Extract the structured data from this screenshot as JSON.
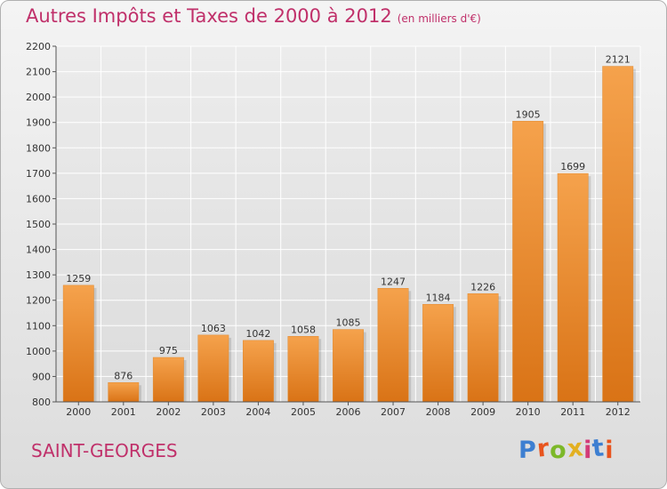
{
  "title": "Autres Impôts et Taxes de 2000 à 2012",
  "subtitle": "(en milliers d'€)",
  "commune": "SAINT-GEORGES",
  "logo": {
    "letters": [
      "P",
      "r",
      "o",
      "x",
      "i",
      "t",
      "i"
    ],
    "colors": [
      "#3d7fd1",
      "#e8541e",
      "#7cb829",
      "#e3b021",
      "#d33a78",
      "#3d7fd1",
      "#e8541e"
    ]
  },
  "colors": {
    "title": "#c0306a",
    "bar_light": "#f5a24c",
    "bar_dark": "#d97316"
  },
  "chart_data": {
    "type": "bar",
    "title": "Autres Impôts et Taxes de 2000 à 2012",
    "subtitle": "(en milliers d'€)",
    "categories": [
      "2000",
      "2001",
      "2002",
      "2003",
      "2004",
      "2005",
      "2006",
      "2007",
      "2008",
      "2009",
      "2010",
      "2011",
      "2012"
    ],
    "values": [
      1259,
      876,
      975,
      1063,
      1042,
      1058,
      1085,
      1247,
      1184,
      1226,
      1905,
      1699,
      2121
    ],
    "ylim": [
      800,
      2200
    ],
    "yticks": [
      800,
      900,
      1000,
      1100,
      1200,
      1300,
      1400,
      1500,
      1600,
      1700,
      1800,
      1900,
      2000,
      2100,
      2200
    ],
    "grid": true,
    "legend": "none"
  }
}
